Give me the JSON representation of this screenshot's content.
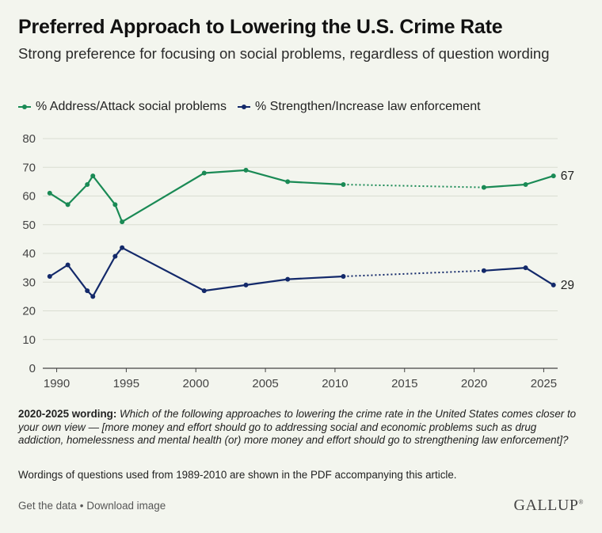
{
  "title": "Preferred Approach to Lowering the U.S. Crime Rate",
  "subtitle": "Strong preference for focusing on social problems, regardless of question wording",
  "colors": {
    "green": "#1a8a55",
    "navy": "#13296a",
    "grid": "#d9ddd2",
    "axis": "#444444",
    "background": "#f3f5ee"
  },
  "chart_data": {
    "type": "line",
    "xlim": [
      1989,
      2026
    ],
    "ylim": [
      0,
      80
    ],
    "x_ticks": [
      1990,
      1995,
      2000,
      2005,
      2010,
      2015,
      2020,
      2025
    ],
    "y_ticks": [
      0,
      10,
      20,
      30,
      40,
      50,
      60,
      70,
      80
    ],
    "grid": "horizontal",
    "legend_position": "top-left",
    "gap": {
      "from": 2010.6,
      "to": 2020.7,
      "style": "dotted"
    },
    "series": [
      {
        "name": "% Address/Attack social problems",
        "color": "#1a8a55",
        "end_label": "67",
        "points": [
          {
            "x": 1989.5,
            "y": 61
          },
          {
            "x": 1990.8,
            "y": 57
          },
          {
            "x": 1992.2,
            "y": 64
          },
          {
            "x": 1992.6,
            "y": 67
          },
          {
            "x": 1994.2,
            "y": 57
          },
          {
            "x": 1994.7,
            "y": 51
          },
          {
            "x": 2000.6,
            "y": 68
          },
          {
            "x": 2003.6,
            "y": 69
          },
          {
            "x": 2006.6,
            "y": 65
          },
          {
            "x": 2010.6,
            "y": 64
          },
          {
            "x": 2020.7,
            "y": 63
          },
          {
            "x": 2023.7,
            "y": 64
          },
          {
            "x": 2025.7,
            "y": 67
          }
        ]
      },
      {
        "name": "% Strengthen/Increase law enforcement",
        "color": "#13296a",
        "end_label": "29",
        "points": [
          {
            "x": 1989.5,
            "y": 32
          },
          {
            "x": 1990.8,
            "y": 36
          },
          {
            "x": 1992.2,
            "y": 27
          },
          {
            "x": 1992.6,
            "y": 25
          },
          {
            "x": 1994.2,
            "y": 39
          },
          {
            "x": 1994.7,
            "y": 42
          },
          {
            "x": 2000.6,
            "y": 27
          },
          {
            "x": 2003.6,
            "y": 29
          },
          {
            "x": 2006.6,
            "y": 31
          },
          {
            "x": 2010.6,
            "y": 32
          },
          {
            "x": 2020.7,
            "y": 34
          },
          {
            "x": 2023.7,
            "y": 35
          },
          {
            "x": 2025.7,
            "y": 29
          }
        ]
      }
    ]
  },
  "footnote": {
    "label": "2020-2025 wording:",
    "text": "Which of the following approaches to lowering the crime rate in the United States comes closer to your own view — [more money and effort should go to addressing social and economic problems such as drug addiction, homelessness and mental health (or) more money and effort should go to strengthening law enforcement]?"
  },
  "note": "Wordings of questions used from 1989-2010 are shown in the PDF accompanying this article.",
  "footer": {
    "get_data": "Get the data",
    "separator": "•",
    "download": "Download image",
    "brand": "GALLUP",
    "brand_mark": "®"
  }
}
